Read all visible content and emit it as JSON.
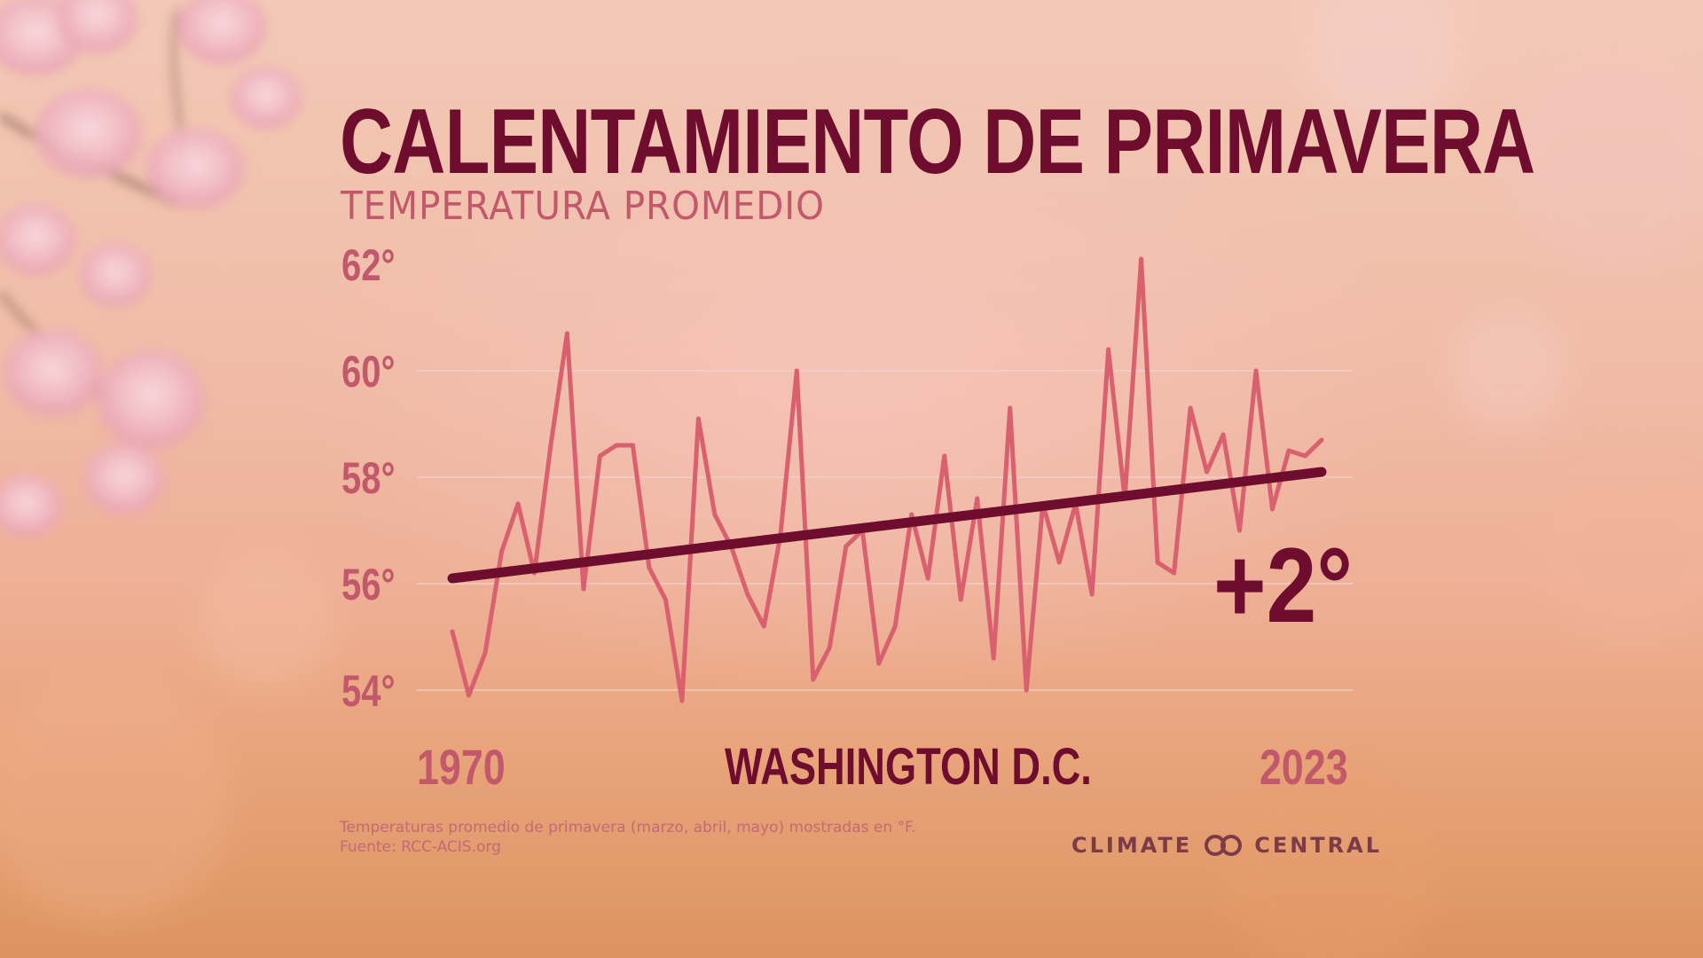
{
  "title": "CALENTAMIENTO DE PRIMAVERA",
  "subtitle": "TEMPERATURA PROMEDIO",
  "location": "WASHINGTON D.C.",
  "change_label": "+2°",
  "footnote": {
    "line1": "Temperaturas promedio de primavera (marzo, abril, mayo) mostradas en °F.",
    "line2": "Fuente: RCC-ACIS.org"
  },
  "brand": {
    "left": "CLIMATE",
    "right": "CENTRAL",
    "logo_icon": "climate-central-rings-icon"
  },
  "colors": {
    "title": "#6f0d2e",
    "line": "#d9606e",
    "trend": "#6f0d2e",
    "ticks": "#c2596a"
  },
  "chart_data": {
    "type": "line",
    "title": "CALENTAMIENTO DE PRIMAVERA",
    "subtitle": "TEMPERATURA PROMEDIO",
    "x": [
      1970,
      1971,
      1972,
      1973,
      1974,
      1975,
      1976,
      1977,
      1978,
      1979,
      1980,
      1981,
      1982,
      1983,
      1984,
      1985,
      1986,
      1987,
      1988,
      1989,
      1990,
      1991,
      1992,
      1993,
      1994,
      1995,
      1996,
      1997,
      1998,
      1999,
      2000,
      2001,
      2002,
      2003,
      2004,
      2005,
      2006,
      2007,
      2008,
      2009,
      2010,
      2011,
      2012,
      2013,
      2014,
      2015,
      2016,
      2017,
      2018,
      2019,
      2020,
      2021,
      2022,
      2023
    ],
    "series": [
      {
        "values": [
          55.1,
          53.9,
          54.7,
          56.6,
          57.5,
          56.2,
          58.6,
          60.7,
          55.9,
          58.4,
          58.6,
          58.6,
          56.3,
          55.7,
          53.8,
          59.1,
          57.3,
          56.7,
          55.8,
          55.2,
          56.9,
          60.0,
          54.2,
          54.8,
          56.7,
          57.0,
          54.5,
          55.2,
          57.3,
          56.1,
          58.4,
          55.7,
          57.6,
          54.6,
          59.3,
          54.0,
          57.5,
          56.4,
          57.5,
          55.8,
          60.4,
          57.6,
          62.1,
          56.4,
          56.2,
          59.3,
          58.1,
          58.8,
          57.0,
          60.0,
          57.4,
          58.5,
          58.4,
          58.7
        ]
      }
    ],
    "trend": {
      "start": 56.1,
      "end": 58.1,
      "label": "+2°"
    },
    "xticks": [
      "1970",
      "2023"
    ],
    "yticks": [
      "54°",
      "56°",
      "58°",
      "60°",
      "62°"
    ],
    "ytick_values": [
      54,
      56,
      58,
      60,
      62
    ],
    "ylim": [
      54,
      62
    ],
    "units": "°F",
    "grid": true
  }
}
